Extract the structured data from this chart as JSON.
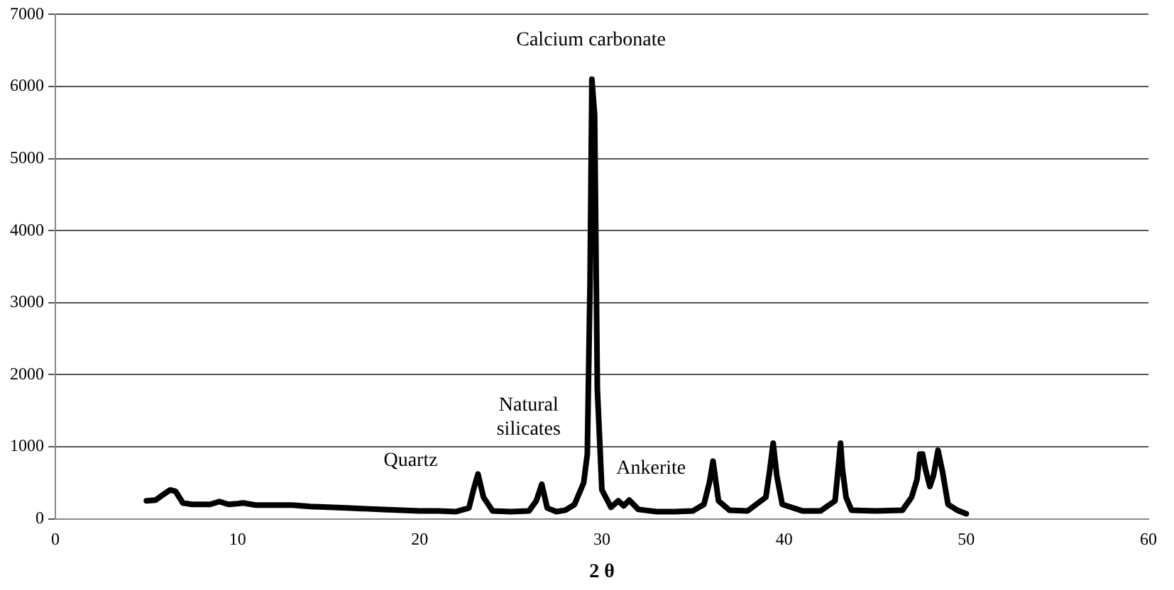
{
  "chart_data": {
    "type": "line",
    "xlabel": "2 θ",
    "color": "#000000",
    "x": [
      5,
      5.5,
      6,
      6.3,
      6.6,
      7,
      7.5,
      8,
      8.5,
      9,
      9.5,
      10,
      10.3,
      11,
      12,
      13,
      14,
      15,
      16,
      17,
      18,
      19,
      20,
      21,
      22,
      22.7,
      23,
      23.2,
      23.5,
      24,
      25,
      26,
      26.4,
      26.7,
      27,
      27.5,
      28,
      28.5,
      29,
      29.2,
      29.35,
      29.45,
      29.6,
      29.75,
      30,
      30.5,
      30.9,
      31.2,
      31.5,
      32,
      33,
      34,
      35,
      35.6,
      35.9,
      36.1,
      36.4,
      37,
      38,
      39,
      39.2,
      39.4,
      39.6,
      39.9,
      41,
      42,
      42.8,
      43.1,
      43.2,
      43.4,
      43.7,
      45,
      46.5,
      47,
      47.3,
      47.45,
      47.6,
      47.75,
      48,
      48.2,
      48.45,
      48.7,
      49,
      49.5,
      50
    ],
    "values": [
      250,
      260,
      350,
      400,
      380,
      220,
      200,
      200,
      200,
      240,
      200,
      210,
      220,
      190,
      190,
      190,
      170,
      160,
      150,
      140,
      130,
      120,
      110,
      110,
      100,
      150,
      450,
      620,
      300,
      110,
      100,
      110,
      250,
      480,
      150,
      100,
      120,
      200,
      500,
      900,
      3300,
      6100,
      5600,
      1800,
      400,
      160,
      250,
      180,
      260,
      130,
      100,
      100,
      110,
      200,
      500,
      800,
      250,
      120,
      110,
      300,
      650,
      1050,
      600,
      200,
      110,
      110,
      250,
      1050,
      700,
      300,
      120,
      110,
      120,
      300,
      550,
      900,
      900,
      700,
      450,
      600,
      950,
      650,
      200,
      120,
      70
    ],
    "xlim": [
      0,
      60
    ],
    "xticks": [
      0,
      10,
      20,
      30,
      40,
      50,
      60
    ],
    "ylim": [
      0,
      7000
    ],
    "yticks": [
      0,
      1000,
      2000,
      3000,
      4000,
      5000,
      6000,
      7000
    ],
    "grid": "y",
    "marker": "none",
    "line_style": "solid",
    "annotations": [
      "Quartz",
      "Natural\nsilicates",
      "Calcium carbonate",
      "Ankerite"
    ]
  }
}
